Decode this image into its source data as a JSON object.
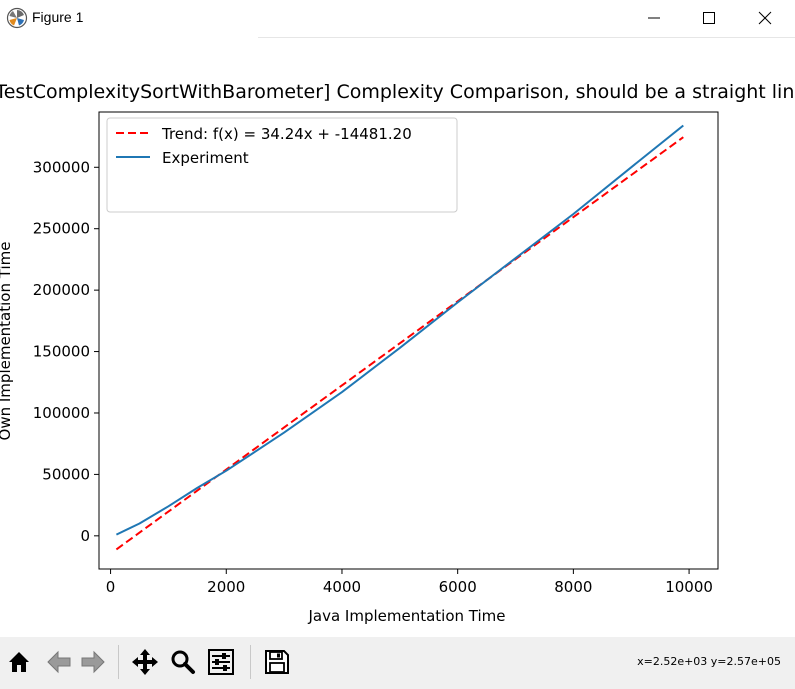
{
  "window": {
    "title": "Figure 1",
    "icons": [
      "matplotlib-app-icon",
      "minimize-icon",
      "maximize-icon",
      "close-icon"
    ]
  },
  "toolbar": {
    "buttons": [
      "home-icon",
      "back-icon",
      "forward-icon",
      "pan-icon",
      "zoom-icon",
      "configure-subplots-icon",
      "save-icon"
    ],
    "coordinates": "x=2.52e+03 y=2.57e+05"
  },
  "chart_data": {
    "type": "line",
    "title": "[TestComplexitySortWithBarometer] Complexity Comparison, should be a straight line",
    "xlabel": "Java Implementation Time",
    "ylabel": "Own Implementation Time",
    "xlim": [
      -200,
      10500
    ],
    "ylim": [
      -27000,
      345000
    ],
    "xticks": [
      "0",
      "2000",
      "4000",
      "6000",
      "8000",
      "10000"
    ],
    "yticks": [
      "0",
      "50000",
      "100000",
      "150000",
      "200000",
      "250000",
      "300000"
    ],
    "grid": false,
    "legend_position": "upper left",
    "series": [
      {
        "name": "Trend: f(x) = 34.24x + -14481.20",
        "style": "dashed",
        "color": "#ff0000",
        "x": [
          100,
          9900
        ],
        "y": [
          -11057,
          324495
        ]
      },
      {
        "name": "Experiment",
        "style": "solid",
        "color": "#1f77b4",
        "x": [
          100,
          500,
          1000,
          1500,
          2000,
          3000,
          4000,
          5000,
          6000,
          7000,
          8000,
          9000,
          9900
        ],
        "y": [
          1000,
          10000,
          24000,
          39000,
          53000,
          84000,
          117000,
          153000,
          190000,
          226000,
          262000,
          300000,
          334000
        ]
      }
    ]
  }
}
